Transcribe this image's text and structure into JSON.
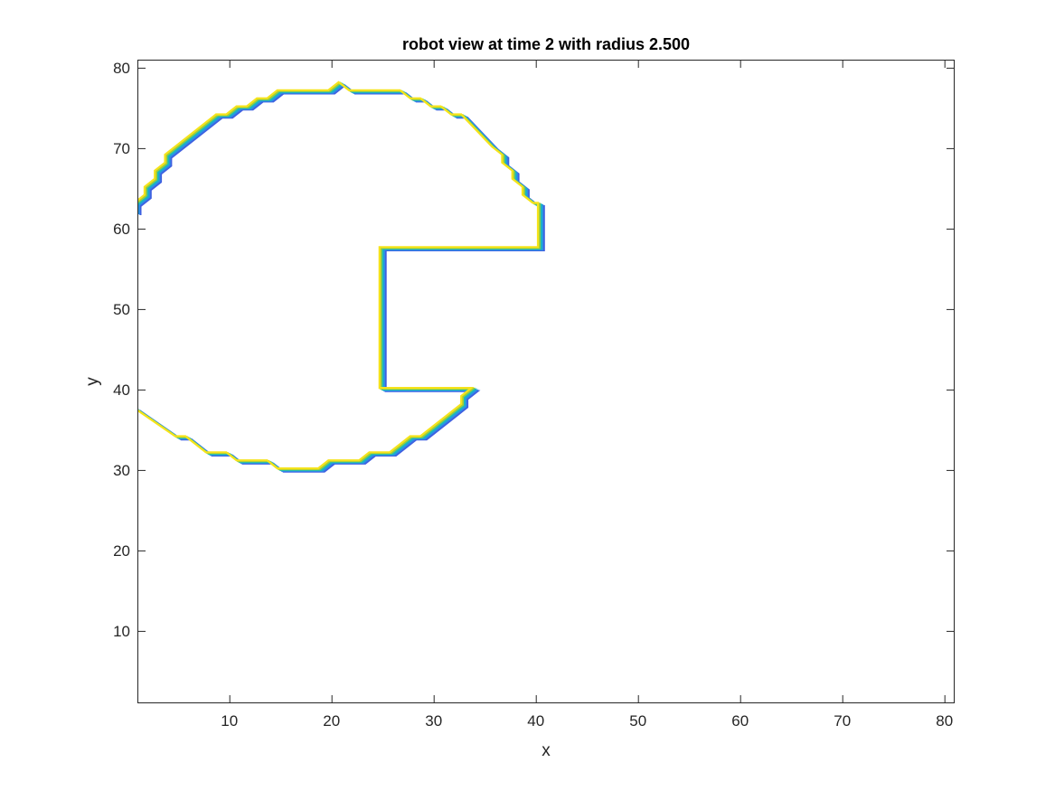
{
  "chart_data": {
    "type": "line",
    "title": "robot view at time 2 with radius 2.500",
    "xlabel": "x",
    "ylabel": "y",
    "xlim": [
      1,
      81
    ],
    "ylim": [
      1,
      81
    ],
    "xticks": [
      10,
      20,
      30,
      40,
      50,
      60,
      70,
      80
    ],
    "yticks": [
      10,
      20,
      30,
      40,
      50,
      60,
      70,
      80
    ],
    "grid": false,
    "box": true,
    "series": [
      {
        "style": "contour",
        "color": "#3f5fe0",
        "offset": [
          0.3,
          -0.2
        ],
        "points": [
          [
            1,
            37.5
          ],
          [
            5,
            34
          ],
          [
            6,
            34
          ],
          [
            8,
            32
          ],
          [
            10,
            32
          ],
          [
            11,
            31
          ],
          [
            14,
            31
          ],
          [
            15,
            30
          ],
          [
            19,
            30
          ],
          [
            20,
            31
          ],
          [
            23,
            31
          ],
          [
            24,
            32
          ],
          [
            26,
            32
          ],
          [
            28,
            34
          ],
          [
            29,
            34
          ],
          [
            33,
            38
          ],
          [
            33,
            39
          ],
          [
            34,
            40
          ],
          [
            25,
            40
          ],
          [
            25,
            57.5
          ],
          [
            40.5,
            57.5
          ],
          [
            40.5,
            63
          ],
          [
            40,
            63
          ],
          [
            39,
            64
          ],
          [
            39,
            65
          ],
          [
            38,
            66
          ],
          [
            38,
            67
          ],
          [
            37,
            68
          ],
          [
            37,
            69
          ],
          [
            36,
            70
          ],
          [
            33,
            74
          ],
          [
            32,
            74
          ],
          [
            31,
            75
          ],
          [
            30,
            75
          ],
          [
            29,
            76
          ],
          [
            28,
            76
          ],
          [
            27,
            77
          ],
          [
            22,
            77
          ],
          [
            21,
            78
          ],
          [
            20,
            77
          ],
          [
            15,
            77
          ],
          [
            14,
            76
          ],
          [
            13,
            76
          ],
          [
            12,
            75
          ],
          [
            11,
            75
          ],
          [
            10,
            74
          ],
          [
            9,
            74
          ],
          [
            4,
            69
          ],
          [
            4,
            68
          ],
          [
            3,
            67
          ],
          [
            3,
            66
          ],
          [
            2,
            65
          ],
          [
            2,
            64
          ],
          [
            1,
            63
          ],
          [
            1,
            62
          ]
        ]
      },
      {
        "style": "contour",
        "color": "#2b8fe6",
        "offset": [
          0.15,
          -0.1
        ],
        "points": [
          [
            1,
            37.5
          ],
          [
            5,
            34
          ],
          [
            6,
            34
          ],
          [
            8,
            32
          ],
          [
            10,
            32
          ],
          [
            11,
            31
          ],
          [
            14,
            31
          ],
          [
            15,
            30
          ],
          [
            19,
            30
          ],
          [
            20,
            31
          ],
          [
            23,
            31
          ],
          [
            24,
            32
          ],
          [
            26,
            32
          ],
          [
            28,
            34
          ],
          [
            29,
            34
          ],
          [
            33,
            38
          ],
          [
            33,
            39
          ],
          [
            34,
            40
          ],
          [
            25,
            40
          ],
          [
            25,
            57.5
          ],
          [
            40.5,
            57.5
          ],
          [
            40.5,
            63
          ],
          [
            40,
            63
          ],
          [
            39,
            64
          ],
          [
            39,
            65
          ],
          [
            38,
            66
          ],
          [
            38,
            67
          ],
          [
            37,
            68
          ],
          [
            37,
            69
          ],
          [
            36,
            70
          ],
          [
            33,
            74
          ],
          [
            32,
            74
          ],
          [
            31,
            75
          ],
          [
            30,
            75
          ],
          [
            29,
            76
          ],
          [
            28,
            76
          ],
          [
            27,
            77
          ],
          [
            22,
            77
          ],
          [
            21,
            78
          ],
          [
            20,
            77
          ],
          [
            15,
            77
          ],
          [
            14,
            76
          ],
          [
            13,
            76
          ],
          [
            12,
            75
          ],
          [
            11,
            75
          ],
          [
            10,
            74
          ],
          [
            9,
            74
          ],
          [
            4,
            69
          ],
          [
            4,
            68
          ],
          [
            3,
            67
          ],
          [
            3,
            66
          ],
          [
            2,
            65
          ],
          [
            2,
            64
          ],
          [
            1,
            63
          ],
          [
            1,
            62
          ]
        ]
      },
      {
        "style": "contour",
        "color": "#19bcb9",
        "offset": [
          0,
          0
        ],
        "points": [
          [
            1,
            37.5
          ],
          [
            5,
            34
          ],
          [
            6,
            34
          ],
          [
            8,
            32
          ],
          [
            10,
            32
          ],
          [
            11,
            31
          ],
          [
            14,
            31
          ],
          [
            15,
            30
          ],
          [
            19,
            30
          ],
          [
            20,
            31
          ],
          [
            23,
            31
          ],
          [
            24,
            32
          ],
          [
            26,
            32
          ],
          [
            28,
            34
          ],
          [
            29,
            34
          ],
          [
            33,
            38
          ],
          [
            33,
            39
          ],
          [
            34,
            40
          ],
          [
            25,
            40
          ],
          [
            25,
            57.5
          ],
          [
            40.5,
            57.5
          ],
          [
            40.5,
            63
          ],
          [
            40,
            63
          ],
          [
            39,
            64
          ],
          [
            39,
            65
          ],
          [
            38,
            66
          ],
          [
            38,
            67
          ],
          [
            37,
            68
          ],
          [
            37,
            69
          ],
          [
            36,
            70
          ],
          [
            33,
            74
          ],
          [
            32,
            74
          ],
          [
            31,
            75
          ],
          [
            30,
            75
          ],
          [
            29,
            76
          ],
          [
            28,
            76
          ],
          [
            27,
            77
          ],
          [
            22,
            77
          ],
          [
            21,
            78
          ],
          [
            20,
            77
          ],
          [
            15,
            77
          ],
          [
            14,
            76
          ],
          [
            13,
            76
          ],
          [
            12,
            75
          ],
          [
            11,
            75
          ],
          [
            10,
            74
          ],
          [
            9,
            74
          ],
          [
            4,
            69
          ],
          [
            4,
            68
          ],
          [
            3,
            67
          ],
          [
            3,
            66
          ],
          [
            2,
            65
          ],
          [
            2,
            64
          ],
          [
            1,
            63
          ],
          [
            1,
            62
          ]
        ]
      },
      {
        "style": "contour",
        "color": "#a0cc3a",
        "offset": [
          -0.15,
          0.1
        ],
        "points": [
          [
            1,
            37.5
          ],
          [
            5,
            34
          ],
          [
            6,
            34
          ],
          [
            8,
            32
          ],
          [
            10,
            32
          ],
          [
            11,
            31
          ],
          [
            14,
            31
          ],
          [
            15,
            30
          ],
          [
            19,
            30
          ],
          [
            20,
            31
          ],
          [
            23,
            31
          ],
          [
            24,
            32
          ],
          [
            26,
            32
          ],
          [
            28,
            34
          ],
          [
            29,
            34
          ],
          [
            33,
            38
          ],
          [
            33,
            39
          ],
          [
            34,
            40
          ],
          [
            25,
            40
          ],
          [
            25,
            57.5
          ],
          [
            40.5,
            57.5
          ],
          [
            40.5,
            63
          ],
          [
            40,
            63
          ],
          [
            39,
            64
          ],
          [
            39,
            65
          ],
          [
            38,
            66
          ],
          [
            38,
            67
          ],
          [
            37,
            68
          ],
          [
            37,
            69
          ],
          [
            36,
            70
          ],
          [
            33,
            74
          ],
          [
            32,
            74
          ],
          [
            31,
            75
          ],
          [
            30,
            75
          ],
          [
            29,
            76
          ],
          [
            28,
            76
          ],
          [
            27,
            77
          ],
          [
            22,
            77
          ],
          [
            21,
            78
          ],
          [
            20,
            77
          ],
          [
            15,
            77
          ],
          [
            14,
            76
          ],
          [
            13,
            76
          ],
          [
            12,
            75
          ],
          [
            11,
            75
          ],
          [
            10,
            74
          ],
          [
            9,
            74
          ],
          [
            4,
            69
          ],
          [
            4,
            68
          ],
          [
            3,
            67
          ],
          [
            3,
            66
          ],
          [
            2,
            65
          ],
          [
            2,
            64
          ],
          [
            1,
            63
          ],
          [
            1,
            62
          ]
        ]
      },
      {
        "style": "contour",
        "color": "#f5e31b",
        "offset": [
          -0.3,
          0.2
        ],
        "points": [
          [
            1,
            37.5
          ],
          [
            5,
            34
          ],
          [
            6,
            34
          ],
          [
            8,
            32
          ],
          [
            10,
            32
          ],
          [
            11,
            31
          ],
          [
            14,
            31
          ],
          [
            15,
            30
          ],
          [
            19,
            30
          ],
          [
            20,
            31
          ],
          [
            23,
            31
          ],
          [
            24,
            32
          ],
          [
            26,
            32
          ],
          [
            28,
            34
          ],
          [
            29,
            34
          ],
          [
            33,
            38
          ],
          [
            33,
            39
          ],
          [
            34,
            40
          ],
          [
            25,
            40
          ],
          [
            25,
            57.5
          ],
          [
            40.5,
            57.5
          ],
          [
            40.5,
            63
          ],
          [
            40,
            63
          ],
          [
            39,
            64
          ],
          [
            39,
            65
          ],
          [
            38,
            66
          ],
          [
            38,
            67
          ],
          [
            37,
            68
          ],
          [
            37,
            69
          ],
          [
            36,
            70
          ],
          [
            33,
            74
          ],
          [
            32,
            74
          ],
          [
            31,
            75
          ],
          [
            30,
            75
          ],
          [
            29,
            76
          ],
          [
            28,
            76
          ],
          [
            27,
            77
          ],
          [
            22,
            77
          ],
          [
            21,
            78
          ],
          [
            20,
            77
          ],
          [
            15,
            77
          ],
          [
            14,
            76
          ],
          [
            13,
            76
          ],
          [
            12,
            75
          ],
          [
            11,
            75
          ],
          [
            10,
            74
          ],
          [
            9,
            74
          ],
          [
            4,
            69
          ],
          [
            4,
            68
          ],
          [
            3,
            67
          ],
          [
            3,
            66
          ],
          [
            2,
            65
          ],
          [
            2,
            64
          ],
          [
            1,
            63
          ],
          [
            1,
            62
          ]
        ]
      }
    ]
  }
}
